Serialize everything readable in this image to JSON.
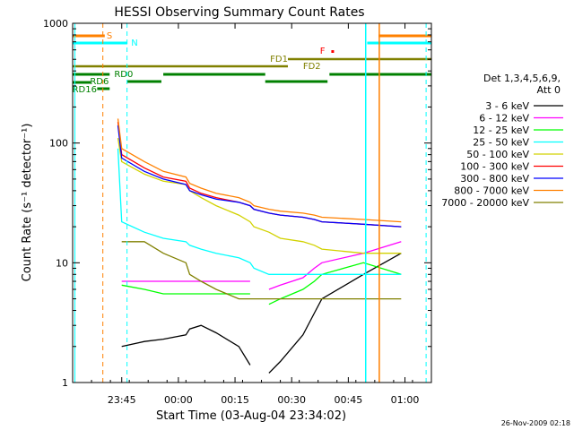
{
  "chart_data": {
    "type": "line",
    "title": "HESSI Observing Summary Count Rates",
    "xlabel": "Start Time (03-Aug-04 23:34:02)",
    "ylabel": "Count Rate (s⁻¹ detector⁻¹)",
    "y_scale": "log",
    "ylim": [
      1,
      1000
    ],
    "xlim": [
      "23:34:02",
      "01:09:00"
    ],
    "x_ticks": [
      "23:45",
      "00:00",
      "00:15",
      "00:30",
      "00:45",
      "01:00"
    ],
    "y_ticks": [
      "1",
      "10",
      "100",
      "1000"
    ],
    "footer": "26-Nov-2009 02:18",
    "legend": {
      "position": "right",
      "header_line1": "Det 1,3,4,5,6,9,",
      "header_line2": "Att 0",
      "entries": [
        {
          "label": "3 - 6 keV",
          "color": "#000000"
        },
        {
          "label": "6 - 12 keV",
          "color": "#ff00ff"
        },
        {
          "label": "12 - 25 keV",
          "color": "#00ff00"
        },
        {
          "label": "25 - 50 keV",
          "color": "#00ffff"
        },
        {
          "label": "50 - 100 keV",
          "color": "#d2d200"
        },
        {
          "label": "100 - 300 keV",
          "color": "#ff0000"
        },
        {
          "label": "300 - 800 keV",
          "color": "#0000ff"
        },
        {
          "label": "800 - 7000 keV",
          "color": "#ff8000"
        },
        {
          "label": "7000 - 20000 keV",
          "color": "#808000"
        }
      ]
    },
    "flags": {
      "S": {
        "label": "S",
        "color": "#ff8000"
      },
      "N": {
        "label": "N",
        "color": "#00ffff"
      },
      "F": {
        "label": "F",
        "color": "#ff0000"
      },
      "FD1": {
        "label": "FD1",
        "color": "#808000"
      },
      "FD2": {
        "label": "FD2",
        "color": "#808000"
      },
      "RD0": {
        "label": "RD0",
        "color": "#008000"
      },
      "RD6": {
        "label": "RD6",
        "color": "#008000"
      },
      "RD16": {
        "label": "RD16",
        "color": "#008000"
      }
    },
    "series_shape": {
      "knots_min": [
        -2,
        10,
        11,
        17,
        22,
        28,
        29,
        32,
        36,
        42,
        45,
        46,
        50,
        53,
        59,
        62,
        64,
        75,
        85,
        95,
        100,
        108,
        110,
        112,
        118,
        120,
        126
      ],
      "notes": "Minutes since 23:34:02; per-band log-count levels interpolated between knots."
    }
  }
}
